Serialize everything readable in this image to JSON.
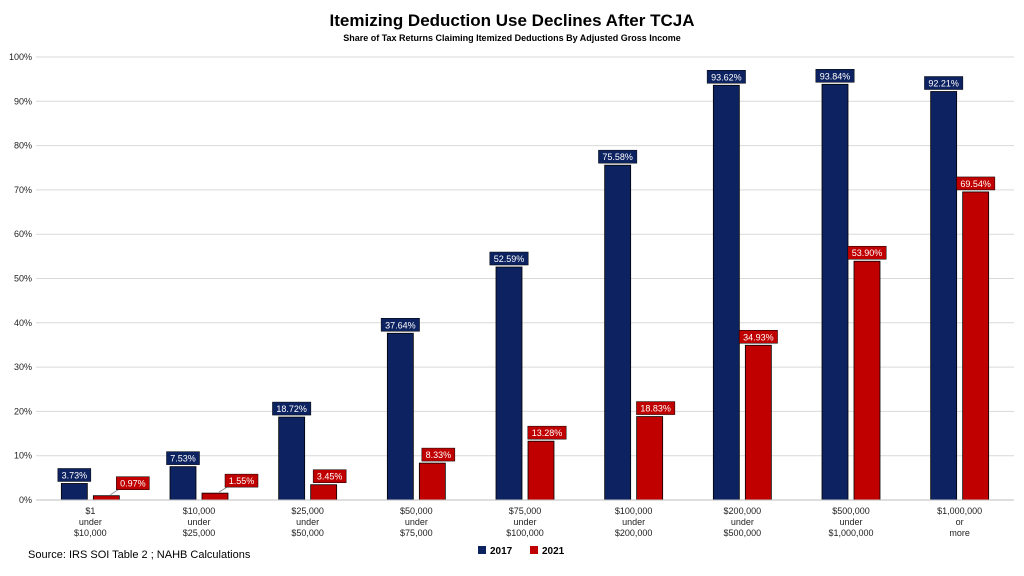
{
  "chart_data": {
    "type": "bar",
    "title": "Itemizing Deduction Use Declines After TCJA",
    "subtitle": "Share of Tax Returns Claiming Itemized Deductions By Adjusted Gross Income",
    "categories": [
      [
        "$1",
        "under",
        "$10,000"
      ],
      [
        "$10,000",
        "under",
        "$25,000"
      ],
      [
        "$25,000",
        "under",
        "$50,000"
      ],
      [
        "$50,000",
        "under",
        "$75,000"
      ],
      [
        "$75,000",
        "under",
        "$100,000"
      ],
      [
        "$100,000",
        "under",
        "$200,000"
      ],
      [
        "$200,000",
        "under",
        "$500,000"
      ],
      [
        "$500,000",
        "under",
        "$1,000,000"
      ],
      [
        "$1,000,000",
        "or",
        "more"
      ]
    ],
    "series": [
      {
        "name": "2017",
        "color": "#0d2260",
        "values": [
          3.73,
          7.53,
          18.72,
          37.64,
          52.59,
          75.58,
          93.62,
          93.84,
          92.21
        ],
        "labels": [
          "3.73%",
          "7.53%",
          "18.72%",
          "37.64%",
          "52.59%",
          "75.58%",
          "93.62%",
          "93.84%",
          "92.21%"
        ]
      },
      {
        "name": "2021",
        "color": "#c00000",
        "values": [
          0.97,
          1.55,
          3.45,
          8.33,
          13.28,
          18.83,
          34.93,
          53.9,
          69.54
        ],
        "labels": [
          "0.97%",
          "1.55%",
          "3.45%",
          "8.33%",
          "13.28%",
          "18.83%",
          "34.93%",
          "53.90%",
          "69.54%"
        ]
      }
    ],
    "ylim": [
      0,
      100
    ],
    "yticks": [
      "0%",
      "10%",
      "20%",
      "30%",
      "40%",
      "50%",
      "60%",
      "70%",
      "80%",
      "90%",
      "100%"
    ],
    "grid": true,
    "legend": "bottom-center"
  },
  "source": "Source: IRS SOI Table 2 ; NAHB Calculations"
}
